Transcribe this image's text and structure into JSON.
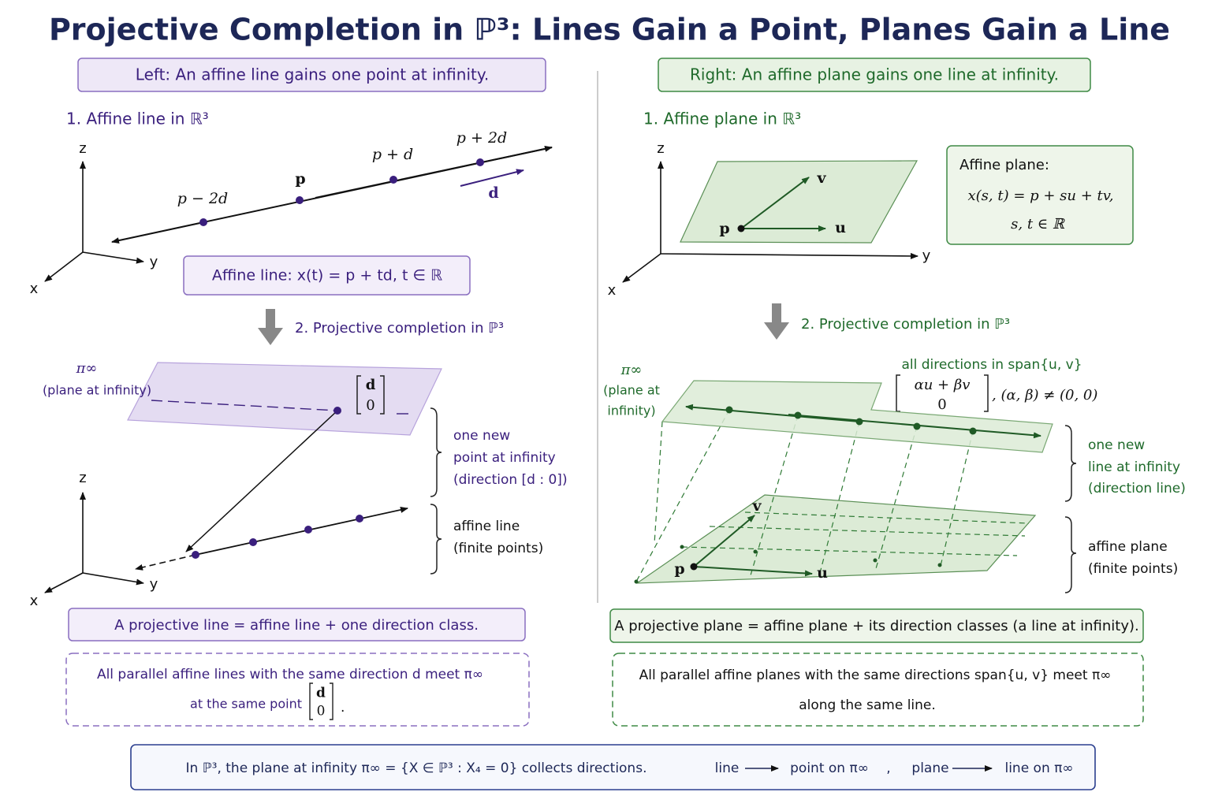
{
  "title": "Projective Completion in ℙ³: Lines Gain a Point, Planes Gain a Line",
  "left": {
    "header": "Left:  An affine line gains one point at infinity.",
    "step1": "1. Affine line in ℝ³",
    "axes_top": [
      "z",
      "y",
      "x"
    ],
    "points": [
      "p − 2d",
      "p",
      "p + d",
      "p + 2d"
    ],
    "direction": "d",
    "formula": "Affine line:  x(t) = p + td,    t ∈ ℝ",
    "step2": "2. Projective completion in ℙ³",
    "plane_label": "π∞",
    "plane_sublabel": "(plane at infinity)",
    "matrix": [
      "d",
      "0"
    ],
    "brace_point": [
      "one new",
      "point at infinity",
      "(direction [d : 0])"
    ],
    "axes_bottom": [
      "z",
      "y",
      "x"
    ],
    "brace_line": [
      "affine line",
      "(finite points)"
    ],
    "summary": "A projective line = affine line + one direction class.",
    "note": {
      "line1": "All parallel affine lines with the same direction d meet π∞",
      "line2": "at the same point",
      "matrix": [
        "d",
        "0"
      ],
      "end": "."
    }
  },
  "right": {
    "header": "Right:  An affine plane gains one line at infinity.",
    "step1": "1. Affine plane in ℝ³",
    "axes_top": [
      "z",
      "y",
      "x"
    ],
    "vectors": [
      "p",
      "u",
      "v"
    ],
    "box": [
      "Affine plane:",
      "x(s, t) = p + su + tv,",
      "s, t ∈ ℝ"
    ],
    "step2": "2. Projective completion in ℙ³",
    "plane_label": [
      "π∞",
      "(plane at",
      "infinity)"
    ],
    "span": "all directions in span{u, v}",
    "matrix": [
      "αu + βv",
      "0"
    ],
    "condition": ",  (α, β) ≠ (0, 0)",
    "brace_line": [
      "one new",
      "line at infinity",
      "(direction line)"
    ],
    "brace_plane": [
      "affine plane",
      "(finite points)"
    ],
    "lower_vectors": [
      "p",
      "u",
      "v"
    ],
    "summary": "A projective plane = affine plane + its direction classes (a line at infinity).",
    "note": {
      "line1": "All parallel affine planes with the same directions span{u, v} meet π∞",
      "line2": "along the same line."
    }
  },
  "footer": {
    "main": "In ℙ³,  the plane at infinity π∞ = {X ∈ ℙ³ : X₄ = 0} collects directions.",
    "line": "line",
    "point": "point on π∞",
    "sep": ",",
    "plane": "plane",
    "line_on": "line on π∞"
  }
}
